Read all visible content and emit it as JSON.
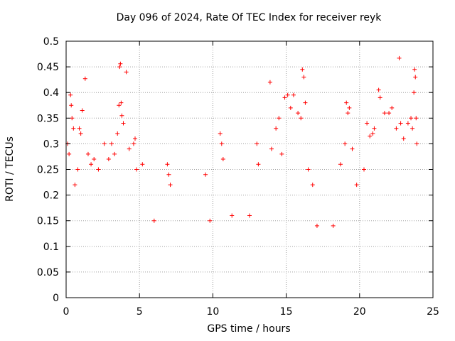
{
  "chart_data": {
    "type": "scatter",
    "title": "Day 096 of 2024, Rate Of TEC Index for receiver reyk",
    "xlabel": "GPS time / hours",
    "ylabel": "ROTI / TECUs",
    "xlim": [
      0,
      25
    ],
    "ylim": [
      0,
      0.5
    ],
    "xticks": [
      0,
      5,
      10,
      15,
      20,
      25
    ],
    "yticks": [
      0,
      0.05,
      0.1,
      0.15,
      0.2,
      0.25,
      0.3,
      0.35,
      0.4,
      0.45,
      0.5
    ],
    "grid": true,
    "marker": "+",
    "color": "#ff0000",
    "series": [
      {
        "points": [
          [
            0.1,
            0.3
          ],
          [
            0.2,
            0.28
          ],
          [
            0.3,
            0.395
          ],
          [
            0.35,
            0.375
          ],
          [
            0.4,
            0.35
          ],
          [
            0.5,
            0.33
          ],
          [
            0.6,
            0.22
          ],
          [
            0.8,
            0.25
          ],
          [
            0.9,
            0.33
          ],
          [
            1.0,
            0.32
          ],
          [
            1.1,
            0.365
          ],
          [
            1.3,
            0.427
          ],
          [
            1.5,
            0.28
          ],
          [
            1.7,
            0.26
          ],
          [
            1.9,
            0.27
          ],
          [
            2.2,
            0.25
          ],
          [
            2.6,
            0.3
          ],
          [
            2.9,
            0.27
          ],
          [
            3.1,
            0.3
          ],
          [
            3.3,
            0.28
          ],
          [
            3.5,
            0.32
          ],
          [
            3.6,
            0.375
          ],
          [
            3.65,
            0.45
          ],
          [
            3.7,
            0.456
          ],
          [
            3.75,
            0.38
          ],
          [
            3.8,
            0.355
          ],
          [
            3.9,
            0.34
          ],
          [
            4.1,
            0.44
          ],
          [
            4.3,
            0.29
          ],
          [
            4.6,
            0.3
          ],
          [
            4.7,
            0.31
          ],
          [
            4.8,
            0.25
          ],
          [
            5.2,
            0.26
          ],
          [
            6.0,
            0.15
          ],
          [
            6.9,
            0.26
          ],
          [
            7.0,
            0.24
          ],
          [
            7.1,
            0.22
          ],
          [
            9.5,
            0.24
          ],
          [
            9.8,
            0.15
          ],
          [
            10.5,
            0.32
          ],
          [
            10.6,
            0.3
          ],
          [
            10.7,
            0.27
          ],
          [
            11.3,
            0.16
          ],
          [
            12.5,
            0.16
          ],
          [
            13.0,
            0.3
          ],
          [
            13.1,
            0.26
          ],
          [
            13.9,
            0.42
          ],
          [
            14.0,
            0.29
          ],
          [
            14.3,
            0.33
          ],
          [
            14.5,
            0.35
          ],
          [
            14.7,
            0.28
          ],
          [
            14.9,
            0.39
          ],
          [
            15.1,
            0.395
          ],
          [
            15.3,
            0.37
          ],
          [
            15.5,
            0.395
          ],
          [
            15.8,
            0.36
          ],
          [
            16.0,
            0.35
          ],
          [
            16.1,
            0.445
          ],
          [
            16.2,
            0.43
          ],
          [
            16.3,
            0.38
          ],
          [
            16.5,
            0.25
          ],
          [
            16.8,
            0.22
          ],
          [
            17.1,
            0.14
          ],
          [
            18.2,
            0.14
          ],
          [
            18.7,
            0.26
          ],
          [
            19.0,
            0.3
          ],
          [
            19.1,
            0.38
          ],
          [
            19.2,
            0.36
          ],
          [
            19.3,
            0.37
          ],
          [
            19.5,
            0.29
          ],
          [
            19.8,
            0.22
          ],
          [
            20.3,
            0.25
          ],
          [
            20.5,
            0.34
          ],
          [
            20.7,
            0.315
          ],
          [
            20.9,
            0.32
          ],
          [
            21.0,
            0.33
          ],
          [
            21.3,
            0.405
          ],
          [
            21.4,
            0.39
          ],
          [
            21.7,
            0.36
          ],
          [
            22.0,
            0.36
          ],
          [
            22.2,
            0.37
          ],
          [
            22.5,
            0.33
          ],
          [
            22.7,
            0.467
          ],
          [
            22.8,
            0.34
          ],
          [
            23.0,
            0.31
          ],
          [
            23.3,
            0.34
          ],
          [
            23.5,
            0.35
          ],
          [
            23.6,
            0.33
          ],
          [
            23.7,
            0.4
          ],
          [
            23.75,
            0.445
          ],
          [
            23.8,
            0.43
          ],
          [
            23.85,
            0.35
          ],
          [
            23.9,
            0.3
          ]
        ]
      }
    ]
  }
}
